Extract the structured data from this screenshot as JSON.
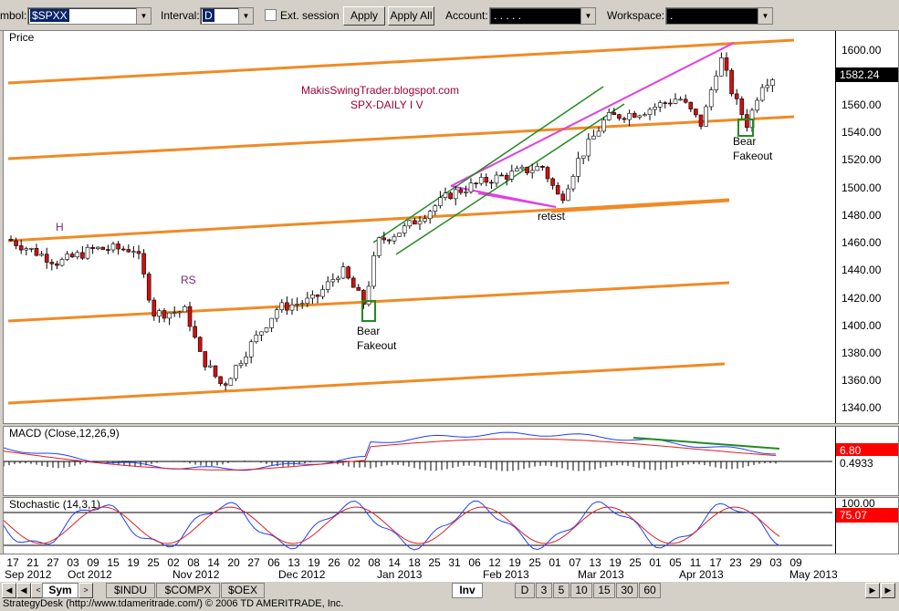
{
  "toolbar": {
    "symbol_label": "mbol:",
    "symbol_value": "$SPXX",
    "interval_label": "Interval:",
    "interval_value": "D",
    "ext_session_label": "Ext. session",
    "apply_label": "Apply",
    "apply_all_label": "Apply All",
    "account_label": "Account:",
    "account_value": ". . . . .",
    "workspace_label": "Workspace:",
    "workspace_value": "."
  },
  "price_pane": {
    "label": "Price",
    "ticks": [
      "1600.00",
      "1580.00",
      "1560.00",
      "1540.00",
      "1520.00",
      "1500.00",
      "1480.00",
      "1460.00",
      "1440.00",
      "1420.00",
      "1400.00",
      "1380.00",
      "1360.00",
      "1340.00"
    ],
    "last_price": "1582.24",
    "annotations": {
      "blog": "MakisSwingTrader.blogspot.com",
      "title": "SPX-DAILY  I V",
      "h": "H",
      "rs": "RS",
      "retest": "retest",
      "bear1": "Bear",
      "fakeout1": "Fakeout",
      "bear2": "Bear",
      "fakeout2": "Fakeout"
    }
  },
  "macd_pane": {
    "label": "MACD (Close,12,26,9)",
    "value1": "6.80",
    "value2": "0.4933"
  },
  "stoch_pane": {
    "label": "Stochastic (14,3,1)",
    "tick_top": "100.00",
    "value": "75.07"
  },
  "date_axis": {
    "days": [
      "17",
      "21",
      "27",
      "03",
      "09",
      "15",
      "19",
      "25",
      "02",
      "08",
      "14",
      "20",
      "27",
      "06",
      "13",
      "19",
      "26",
      "02",
      "08",
      "14",
      "18",
      "25",
      "31",
      "06",
      "12",
      "19",
      "25",
      "01",
      "07",
      "13",
      "19",
      "25",
      "01",
      "05",
      "11",
      "17",
      "23",
      "29",
      "03",
      "09"
    ],
    "months": [
      "Sep 2012",
      "Oct 2012",
      "Nov 2012",
      "Dec 2012",
      "Jan 2013",
      "Feb 2013",
      "Mar 2013",
      "Apr 2013",
      "May 2013"
    ]
  },
  "tabs": {
    "sym": "Sym",
    "indu": "$INDU",
    "compx": "$COMPX",
    "oex": "$OEX",
    "inv": "Inv",
    "d": "D",
    "i3": "3",
    "i5": "5",
    "i10": "10",
    "i15": "15",
    "i30": "30",
    "i60": "60"
  },
  "status": {
    "text": "StrategyDesk (http://www.tdameritrade.com/) © 2006 TD AMERITRADE, Inc."
  },
  "colors": {
    "trendline_orange": "#f08a24",
    "trendline_magenta": "#e040e0",
    "trendline_green": "#228b22",
    "macd_blue": "#1f3fff",
    "signal_red": "#e02020",
    "flag_red": "#ff0000"
  }
}
